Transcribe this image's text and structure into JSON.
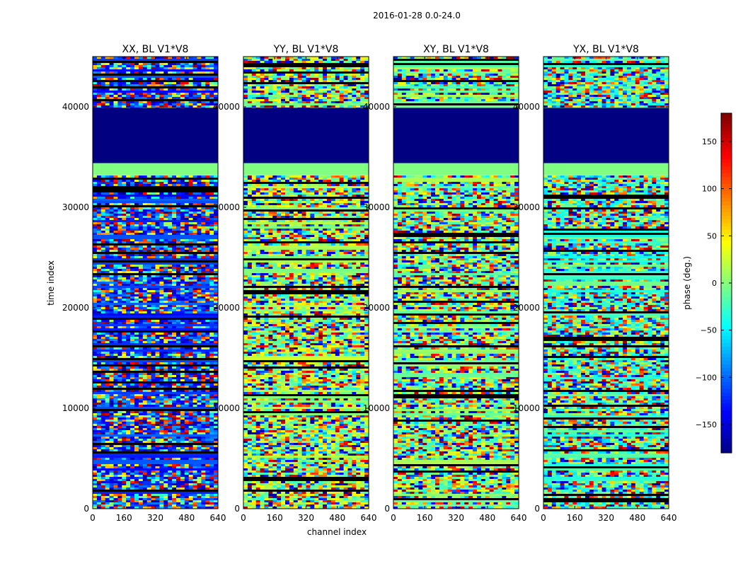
{
  "figure": {
    "suptitle": "2016-01-28 0.0-24.0",
    "xlabel": "channel index",
    "ylabel": "time index",
    "colorbar_label": "phase (deg.)"
  },
  "chart_data": {
    "type": "heatmap",
    "xlim": [
      0,
      640
    ],
    "ylim": [
      0,
      45000
    ],
    "xticks": [
      0,
      160,
      320,
      480,
      640
    ],
    "yticks": [
      0,
      10000,
      20000,
      30000,
      40000
    ],
    "colormap": "jet",
    "clim": [
      -180,
      180
    ],
    "colorbar_ticks": [
      -150,
      -100,
      -50,
      0,
      50,
      100,
      150
    ],
    "panels": [
      {
        "title": "XX, BL V1*V8"
      },
      {
        "title": "YY, BL V1*V8"
      },
      {
        "title": "XY, BL V1*V8"
      },
      {
        "title": "YX, BL V1*V8"
      }
    ],
    "flagged_time_range": [
      34400,
      39900
    ],
    "flagged_phase": -180,
    "constant_band_range": [
      33200,
      34400
    ],
    "constant_band_phase": 0
  }
}
